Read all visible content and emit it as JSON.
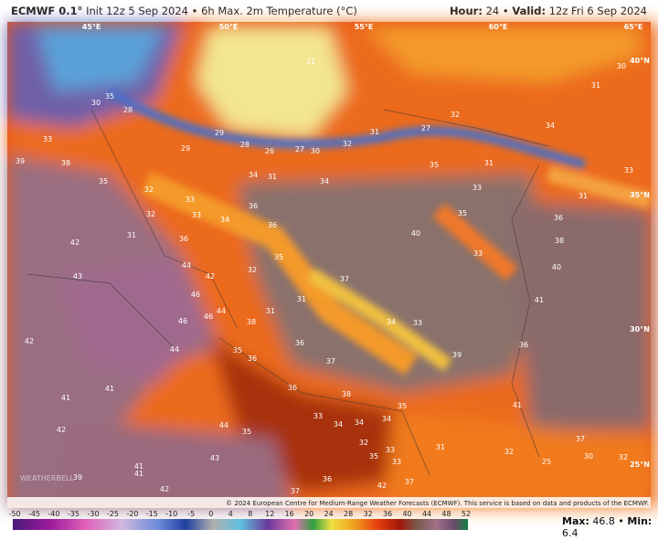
{
  "header": {
    "model": "ECMWF 0.1°",
    "info": "Init 12z 5 Sep 2024 • 6h Max. 2m Temperature (°C)",
    "hour_label": "Hour:",
    "hour": "24",
    "valid_label": "Valid:",
    "valid": "12z Fri 6 Sep 2024",
    "separator": "•"
  },
  "map": {
    "lon_labels": [
      "45°E",
      "50°E",
      "55°E",
      "60°E",
      "65°E"
    ],
    "lat_labels": [
      "40°N",
      "35°N",
      "30°N",
      "25°N"
    ],
    "labels": [
      "31",
      "30",
      "31",
      "28",
      "30",
      "35",
      "33",
      "32",
      "34",
      "27",
      "31",
      "32",
      "30",
      "27",
      "26",
      "29",
      "29",
      "28",
      "33",
      "35",
      "31",
      "39",
      "38",
      "35",
      "32",
      "33",
      "34",
      "31",
      "34",
      "33",
      "31",
      "32",
      "33",
      "34",
      "36",
      "36",
      "35",
      "36",
      "42",
      "31",
      "36",
      "40",
      "38",
      "33",
      "43",
      "44",
      "42",
      "35",
      "32",
      "40",
      "46",
      "37",
      "31",
      "41",
      "44",
      "46",
      "46",
      "38",
      "31",
      "34",
      "33",
      "42",
      "44",
      "35",
      "36",
      "36",
      "39",
      "36",
      "37",
      "41",
      "41",
      "36",
      "38",
      "35",
      "41",
      "33",
      "34",
      "34",
      "34",
      "42",
      "44",
      "35",
      "37",
      "32",
      "31",
      "32",
      "30",
      "32",
      "35",
      "33",
      "43",
      "41",
      "41",
      "39",
      "33",
      "36",
      "42",
      "37",
      "42",
      "37",
      "25"
    ],
    "copyright": "© 2024 European Centre for Medium-Range Weather Forecasts (ECMWF). This service is based on data and products of the ECMWF.",
    "watermark": "WEATHERBELL"
  },
  "colorbar": {
    "ticks": [
      "-50",
      "-45",
      "-40",
      "-35",
      "-30",
      "-25",
      "-20",
      "-15",
      "-10",
      "-5",
      "0",
      "4",
      "8",
      "12",
      "16",
      "20",
      "24",
      "28",
      "32",
      "36",
      "40",
      "44",
      "48",
      "52"
    ]
  },
  "footer": {
    "max_label": "Max:",
    "max": "46.8",
    "min_label": "Min:",
    "min": "6.4",
    "separator": "•"
  }
}
